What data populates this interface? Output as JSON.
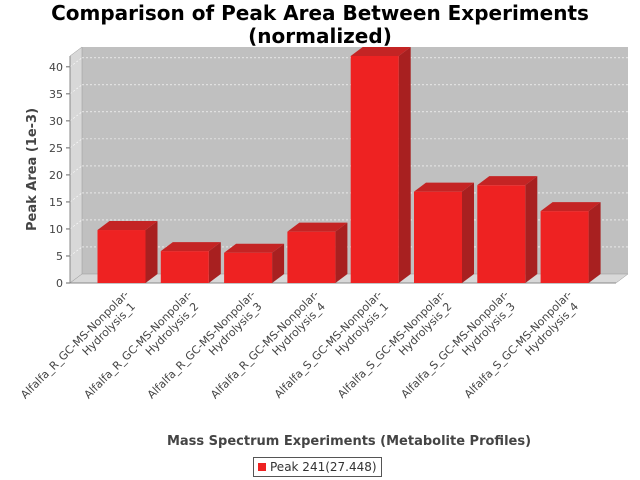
{
  "chart_data": {
    "type": "bar",
    "title_line1": "Comparison of Peak Area Between Experiments",
    "title_line2": "(normalized)",
    "xlabel": "Mass Spectrum Experiments (Metabolite Profiles)",
    "ylabel": "Peak Area (1e-3)",
    "ylim": [
      0,
      42
    ],
    "yticks": [
      0,
      5,
      10,
      15,
      20,
      25,
      30,
      35,
      40
    ],
    "grid": true,
    "legend_position": "bottom",
    "categories": [
      [
        "Alfalfa_R_GC-MS-Nonpolar-",
        "Hydrolysis_1"
      ],
      [
        "Alfalfa_R_GC-MS-Nonpolar-",
        "Hydrolysis_2"
      ],
      [
        "Alfalfa_R_GC-MS-Nonpolar-",
        "Hydrolysis_3"
      ],
      [
        "Alfalfa_R_GC-MS-Nonpolar-",
        "Hydrolysis_4"
      ],
      [
        "Alfalfa_S_GC-MS-Nonpolar-",
        "Hydrolysis_1"
      ],
      [
        "Alfalfa_S_GC-MS-Nonpolar-",
        "Hydrolysis_2"
      ],
      [
        "Alfalfa_S_GC-MS-Nonpolar-",
        "Hydrolysis_3"
      ],
      [
        "Alfalfa_S_GC-MS-Nonpolar-",
        "Hydrolysis_4"
      ]
    ],
    "series": [
      {
        "name": "Peak 241(27.448)",
        "color": "#ee2222",
        "values": [
          9.8,
          5.9,
          5.6,
          9.5,
          42.0,
          16.9,
          18.1,
          13.3
        ]
      }
    ],
    "colors": {
      "plot_background": "#c0c0c0",
      "wall_left": "#d8d8d8",
      "floor": "#d8d8d8",
      "bar_front": "#ee2222",
      "bar_side": "#a82020",
      "bar_top": "#c42424"
    }
  }
}
